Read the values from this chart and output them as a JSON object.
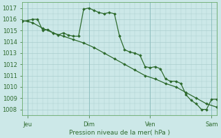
{
  "bg_color": "#cce8e8",
  "grid_color": "#aacece",
  "line_color": "#2d6a2d",
  "marker_color": "#2d6a2d",
  "xlabel_text": "Pression niveau de la mer( hPa )",
  "ylim": [
    1007.5,
    1017.5
  ],
  "xlim": [
    0,
    114
  ],
  "yticks": [
    1008,
    1009,
    1010,
    1011,
    1012,
    1013,
    1014,
    1015,
    1016,
    1017
  ],
  "x_tick_positions": [
    3,
    39,
    75,
    111
  ],
  "x_tick_labels": [
    "Jeu",
    "Dim",
    "Ven",
    "Sam"
  ],
  "line1_x": [
    0,
    3,
    6,
    9,
    12,
    15,
    18,
    21,
    24,
    27,
    30,
    33,
    36,
    39,
    42,
    45,
    48,
    51,
    54,
    57,
    60,
    63,
    66,
    69,
    72,
    75,
    78,
    81,
    84,
    87,
    90,
    93,
    96,
    99,
    102,
    105,
    108,
    111,
    114
  ],
  "line1_y": [
    1015.8,
    1015.9,
    1016.0,
    1016.0,
    1015.0,
    1015.1,
    1014.8,
    1014.6,
    1014.8,
    1014.6,
    1014.5,
    1014.5,
    1016.9,
    1017.0,
    1016.8,
    1016.6,
    1016.5,
    1016.6,
    1016.5,
    1014.5,
    1013.3,
    1013.1,
    1013.0,
    1012.8,
    1011.8,
    1011.7,
    1011.8,
    1011.6,
    1010.7,
    1010.5,
    1010.5,
    1010.3,
    1009.3,
    1008.8,
    1008.5,
    1008.0,
    1008.0,
    1008.9,
    1008.9
  ],
  "line2_x": [
    0,
    6,
    12,
    18,
    24,
    30,
    36,
    42,
    48,
    54,
    60,
    66,
    72,
    78,
    84,
    90,
    96,
    102,
    108,
    114
  ],
  "line2_y": [
    1015.9,
    1015.7,
    1015.2,
    1014.8,
    1014.5,
    1014.2,
    1013.9,
    1013.5,
    1013.0,
    1012.5,
    1012.0,
    1011.5,
    1011.0,
    1010.7,
    1010.3,
    1010.0,
    1009.5,
    1009.0,
    1008.5,
    1008.2
  ]
}
